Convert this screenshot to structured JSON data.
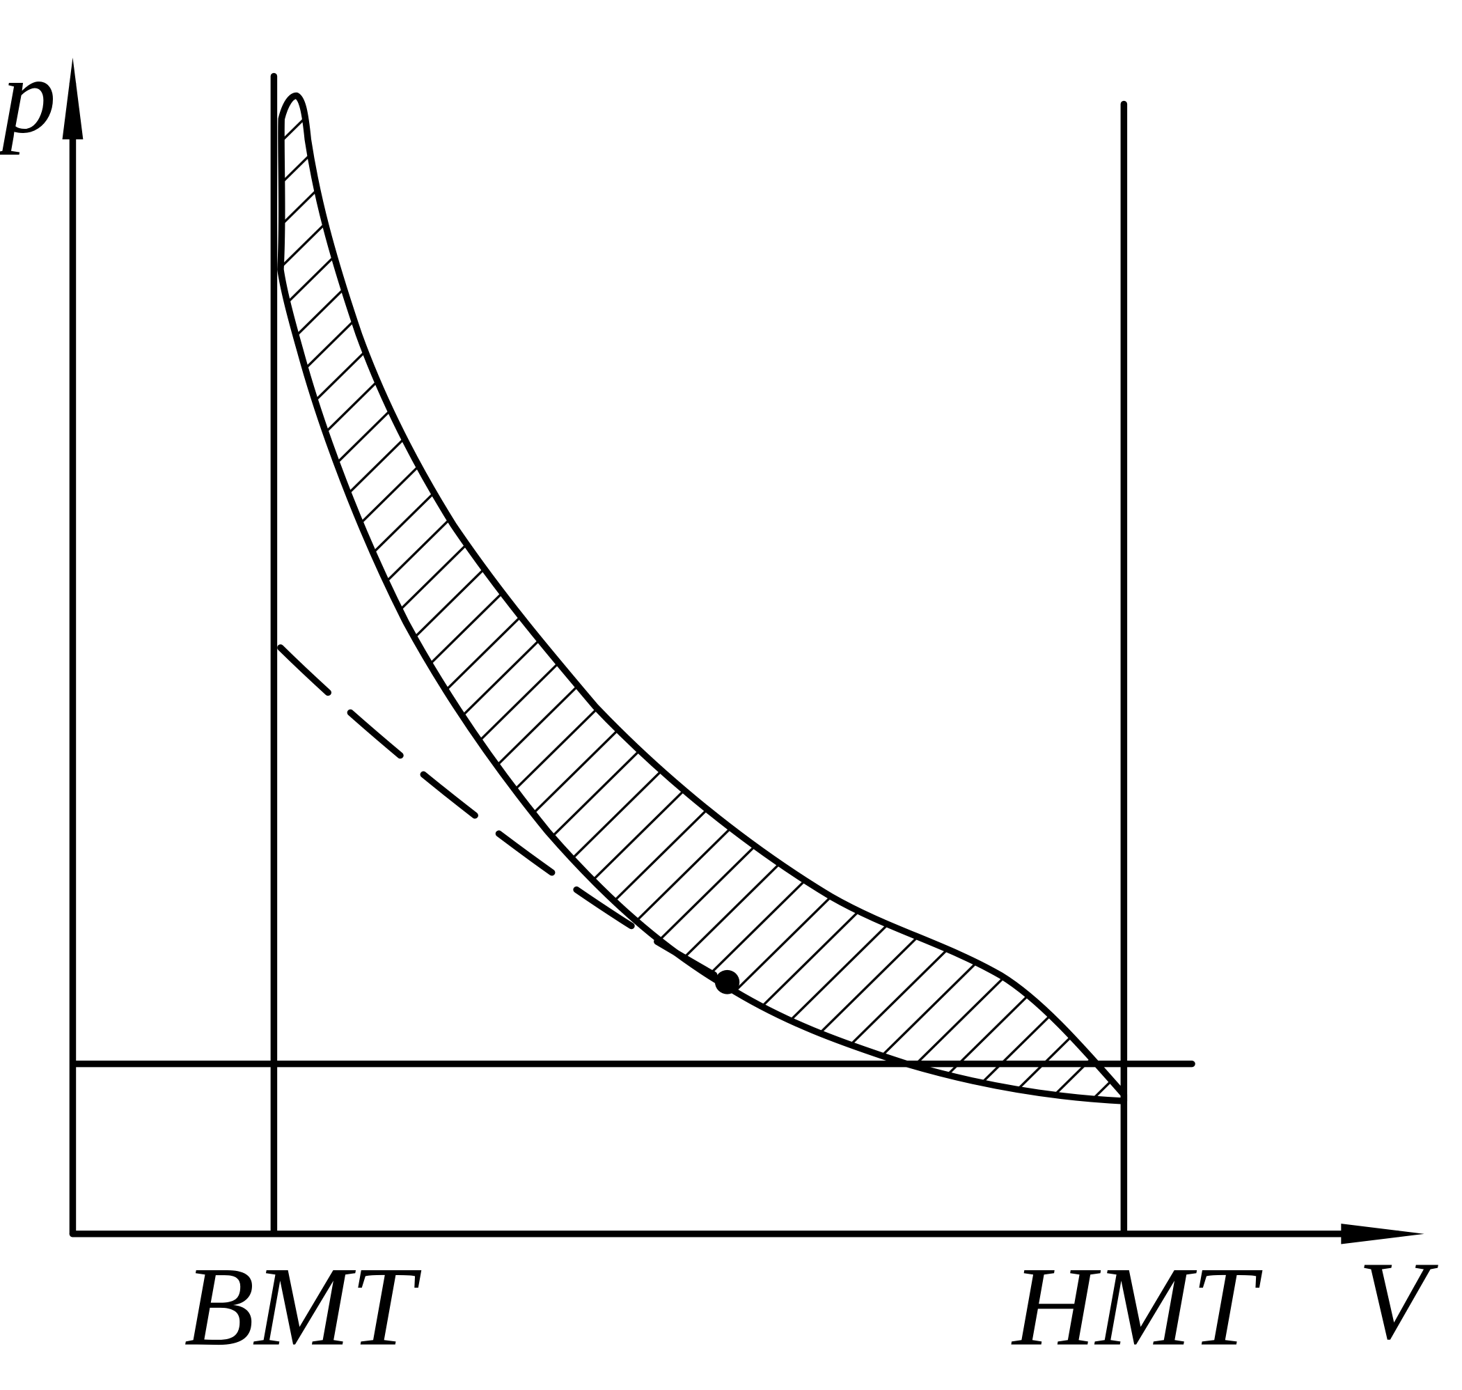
{
  "axes": {
    "y_label": "p",
    "x_label": "V"
  },
  "markers": {
    "bmt": "BMT",
    "hmt": "HMT"
  }
}
